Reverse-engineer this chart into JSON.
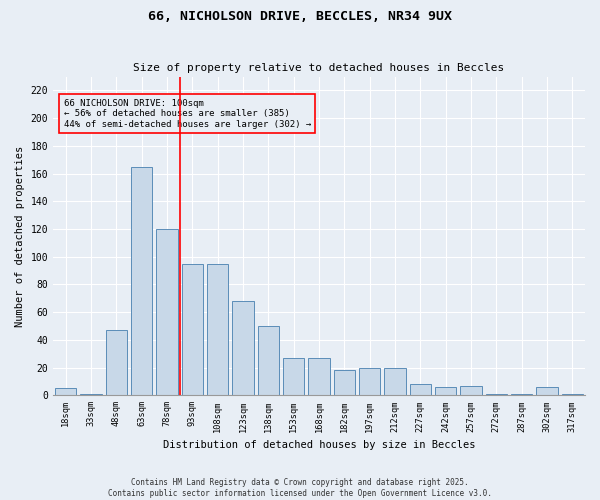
{
  "title_line1": "66, NICHOLSON DRIVE, BECCLES, NR34 9UX",
  "title_line2": "Size of property relative to detached houses in Beccles",
  "xlabel": "Distribution of detached houses by size in Beccles",
  "ylabel": "Number of detached properties",
  "bar_labels": [
    "18sqm",
    "33sqm",
    "48sqm",
    "63sqm",
    "78sqm",
    "93sqm",
    "108sqm",
    "123sqm",
    "138sqm",
    "153sqm",
    "168sqm",
    "182sqm",
    "197sqm",
    "212sqm",
    "227sqm",
    "242sqm",
    "257sqm",
    "272sqm",
    "287sqm",
    "302sqm",
    "317sqm"
  ],
  "bar_values": [
    5,
    1,
    47,
    165,
    120,
    95,
    95,
    68,
    50,
    27,
    27,
    18,
    20,
    20,
    8,
    6,
    7,
    1,
    1,
    6,
    1
  ],
  "bar_color": "#c8d8e8",
  "bar_edge_color": "#5b8db8",
  "background_color": "#e8eef5",
  "grid_color": "#ffffff",
  "annotation_text_line1": "66 NICHOLSON DRIVE: 100sqm",
  "annotation_text_line2": "← 56% of detached houses are smaller (385)",
  "annotation_text_line3": "44% of semi-detached houses are larger (302) →",
  "vline_x_index": 5,
  "ylim": [
    0,
    230
  ],
  "yticks": [
    0,
    20,
    40,
    60,
    80,
    100,
    120,
    140,
    160,
    180,
    200,
    220
  ],
  "footer_line1": "Contains HM Land Registry data © Crown copyright and database right 2025.",
  "footer_line2": "Contains public sector information licensed under the Open Government Licence v3.0."
}
